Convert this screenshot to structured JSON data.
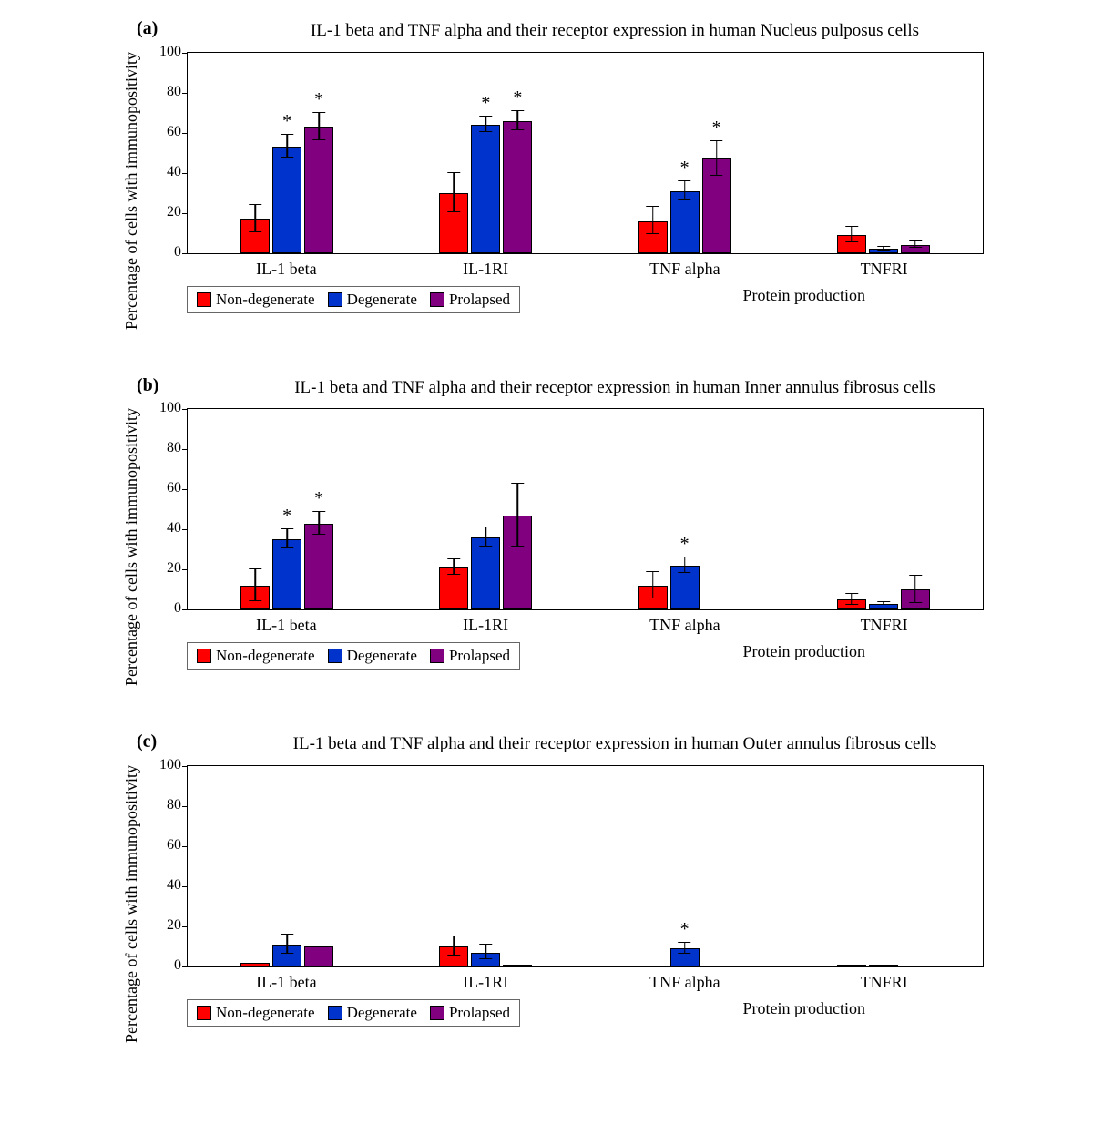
{
  "global": {
    "ylabel": "Percentage of cells with immunopositivity",
    "xlabel": "Protein production",
    "categories": [
      "IL-1 beta",
      "IL-1RI",
      "TNF alpha",
      "TNFRI"
    ],
    "series": [
      {
        "name": "Non-degenerate",
        "color": "#ff0000"
      },
      {
        "name": "Degenerate",
        "color": "#0033cc"
      },
      {
        "name": "Prolapsed",
        "color": "#800080"
      }
    ],
    "ylim": [
      0,
      100
    ],
    "ytick_step": 20,
    "plot_border_color": "#000000",
    "background_color": "#ffffff",
    "label_fontsize": 18,
    "title_fontsize": 19,
    "bar_border_color": "#000000",
    "error_bar_color": "#000000"
  },
  "panels": [
    {
      "tag": "(a)",
      "title": "IL-1 beta and TNF alpha and their receptor expression in human Nucleus pulposus cells",
      "data": [
        {
          "vals": [
            17,
            53,
            63
          ],
          "err": [
            7,
            6,
            7
          ],
          "stars": [
            false,
            true,
            true
          ]
        },
        {
          "vals": [
            30,
            64,
            66
          ],
          "err": [
            10,
            4,
            5
          ],
          "stars": [
            false,
            true,
            true
          ]
        },
        {
          "vals": [
            16,
            31,
            47
          ],
          "err": [
            7,
            5,
            9
          ],
          "stars": [
            false,
            true,
            true
          ]
        },
        {
          "vals": [
            9,
            2,
            4
          ],
          "err": [
            4,
            1,
            2
          ],
          "stars": [
            false,
            false,
            false
          ]
        }
      ]
    },
    {
      "tag": "(b)",
      "title": "IL-1 beta and TNF alpha and their receptor expression in human Inner annulus fibrosus cells",
      "data": [
        {
          "vals": [
            12,
            35,
            43
          ],
          "err": [
            8,
            5,
            6
          ],
          "stars": [
            false,
            true,
            true
          ]
        },
        {
          "vals": [
            21,
            36,
            47
          ],
          "err": [
            4,
            5,
            16
          ],
          "stars": [
            false,
            false,
            false
          ]
        },
        {
          "vals": [
            12,
            22,
            0
          ],
          "err": [
            7,
            4,
            0
          ],
          "stars": [
            false,
            true,
            false
          ]
        },
        {
          "vals": [
            5,
            3,
            10
          ],
          "err": [
            3,
            1,
            7
          ],
          "stars": [
            false,
            false,
            false
          ]
        }
      ]
    },
    {
      "tag": "(c)",
      "title": "IL-1 beta and TNF alpha and their receptor expression in human Outer annulus fibrosus cells",
      "data": [
        {
          "vals": [
            2,
            11,
            10
          ],
          "err": [
            0,
            5,
            0
          ],
          "stars": [
            false,
            false,
            false
          ]
        },
        {
          "vals": [
            10,
            7,
            1
          ],
          "err": [
            5,
            4,
            0
          ],
          "stars": [
            false,
            false,
            false
          ]
        },
        {
          "vals": [
            0,
            9,
            0
          ],
          "err": [
            0,
            3,
            0
          ],
          "stars": [
            false,
            true,
            false
          ]
        },
        {
          "vals": [
            1,
            1,
            0
          ],
          "err": [
            0,
            0,
            0
          ],
          "stars": [
            false,
            false,
            false
          ]
        }
      ]
    }
  ]
}
